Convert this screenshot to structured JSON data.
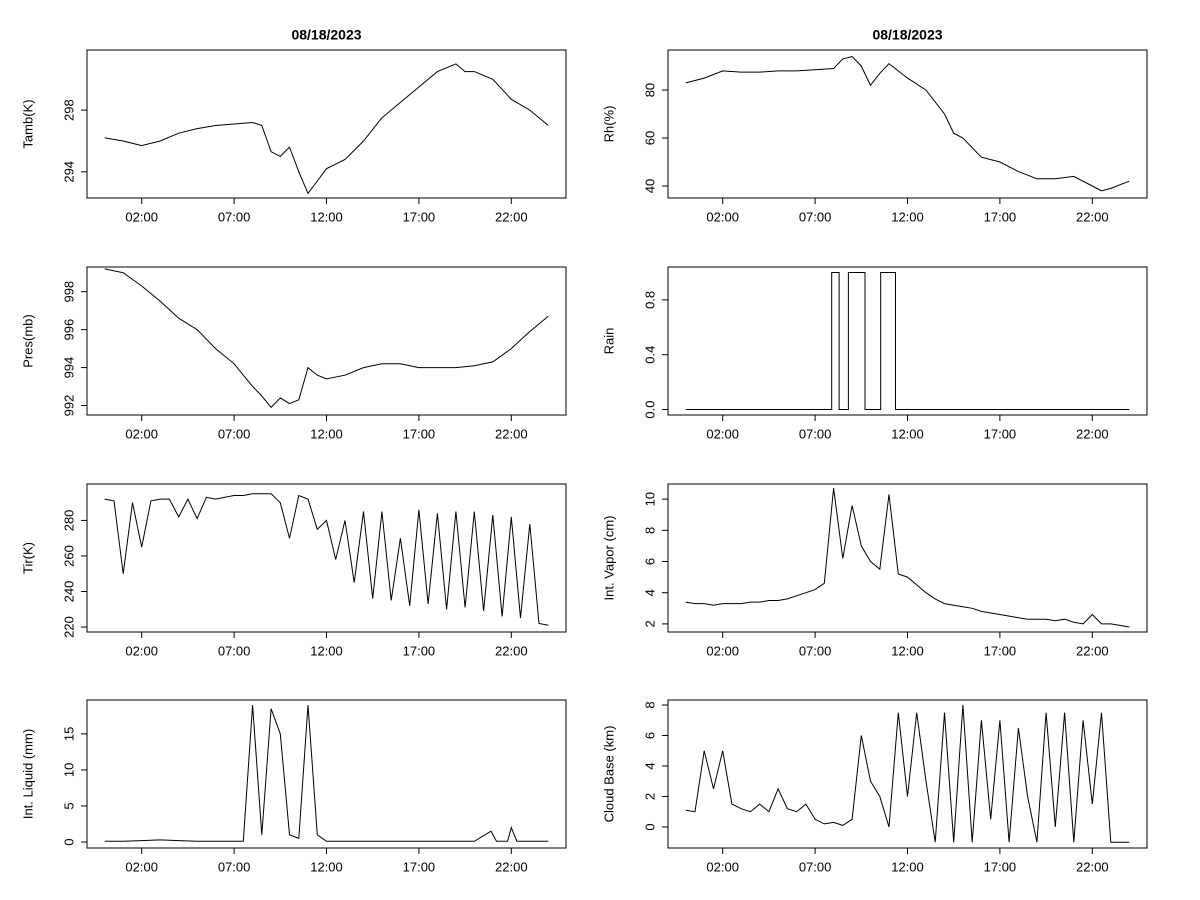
{
  "chart_data": [
    {
      "type": "line",
      "title": "08/18/2023",
      "y_label": "Tamb(K)",
      "color": "#000000",
      "x": [
        0,
        1,
        2,
        3,
        4,
        5,
        6,
        7,
        8,
        8.5,
        9,
        9.5,
        10,
        10.5,
        11,
        11.5,
        12,
        13,
        14,
        15,
        16,
        17,
        18,
        19,
        19.5,
        20,
        21,
        22,
        23,
        24
      ],
      "values": [
        296.2,
        296.0,
        295.7,
        296.0,
        296.5,
        296.8,
        297.0,
        297.1,
        297.2,
        297.0,
        295.3,
        295.0,
        295.6,
        294.0,
        292.6,
        293.4,
        294.2,
        294.8,
        296.0,
        297.5,
        298.5,
        299.5,
        300.5,
        301.0,
        300.5,
        300.5,
        300.0,
        298.7,
        298.0,
        297.0
      ],
      "xlim": [
        -0.96,
        24.96
      ],
      "xticks": [
        {
          "value": 2,
          "label": "02:00"
        },
        {
          "value": 7,
          "label": "07:00"
        },
        {
          "value": 12,
          "label": "12:00"
        },
        {
          "value": 17,
          "label": "17:00"
        },
        {
          "value": 22,
          "label": "22:00"
        }
      ],
      "ylim": [
        292.3,
        301.9
      ],
      "yticks": [
        294,
        298
      ]
    },
    {
      "type": "line",
      "title": "08/18/2023",
      "y_label": "Rh(%)",
      "color": "#000000",
      "x": [
        0,
        1,
        2,
        3,
        4,
        5,
        6,
        7,
        8,
        8.5,
        9,
        9.5,
        10,
        10.5,
        11,
        11.5,
        12,
        13,
        14,
        14.5,
        15,
        16,
        17,
        18,
        19,
        20,
        21,
        22,
        22.5,
        23,
        24
      ],
      "values": [
        83,
        85,
        88,
        87.5,
        87.5,
        88,
        88,
        88.5,
        89,
        93,
        94,
        90,
        82,
        87,
        91,
        88,
        85,
        80,
        70,
        62,
        60,
        52,
        50,
        46,
        43,
        43,
        44,
        40,
        38,
        39,
        42
      ],
      "xlim": [
        -0.96,
        24.96
      ],
      "xticks": [
        {
          "value": 2,
          "label": "02:00"
        },
        {
          "value": 7,
          "label": "07:00"
        },
        {
          "value": 12,
          "label": "12:00"
        },
        {
          "value": 17,
          "label": "17:00"
        },
        {
          "value": 22,
          "label": "22:00"
        }
      ],
      "ylim": [
        35,
        96.7
      ],
      "yticks": [
        40,
        60,
        80
      ]
    },
    {
      "type": "line",
      "y_label": "Pres(mb)",
      "color": "#000000",
      "x": [
        0,
        1,
        2,
        3,
        4,
        5,
        6,
        7,
        8,
        8.5,
        9,
        9.5,
        10,
        10.5,
        11,
        11.5,
        12,
        13,
        14,
        15,
        16,
        17,
        18,
        19,
        20,
        21,
        22,
        23,
        24
      ],
      "values": [
        999.2,
        999.0,
        998.3,
        997.5,
        996.6,
        996.0,
        995.0,
        994.2,
        993.0,
        992.5,
        991.9,
        992.4,
        992.1,
        992.3,
        994.0,
        993.6,
        993.4,
        993.6,
        994.0,
        994.2,
        994.2,
        994.0,
        994.0,
        994.0,
        994.1,
        994.3,
        995.0,
        995.9,
        996.7
      ],
      "xlim": [
        -0.96,
        24.96
      ],
      "xticks": [
        {
          "value": 2,
          "label": "02:00"
        },
        {
          "value": 7,
          "label": "07:00"
        },
        {
          "value": 12,
          "label": "12:00"
        },
        {
          "value": 17,
          "label": "17:00"
        },
        {
          "value": 22,
          "label": "22:00"
        }
      ],
      "ylim": [
        991.5,
        999.3
      ],
      "yticks": [
        992,
        994,
        996,
        998
      ]
    },
    {
      "type": "line",
      "y_label": "Rain",
      "color": "#000000",
      "x": [
        0,
        7.9,
        7.9,
        8.3,
        8.3,
        8.8,
        8.8,
        9.7,
        9.7,
        10.55,
        10.55,
        11.35,
        11.35,
        24
      ],
      "values": [
        0,
        0,
        1,
        1,
        0,
        0,
        1,
        1,
        0,
        0,
        1,
        1,
        0,
        0
      ],
      "xlim": [
        -0.96,
        24.96
      ],
      "xticks": [
        {
          "value": 2,
          "label": "02:00"
        },
        {
          "value": 7,
          "label": "07:00"
        },
        {
          "value": 12,
          "label": "12:00"
        },
        {
          "value": 17,
          "label": "17:00"
        },
        {
          "value": 22,
          "label": "22:00"
        }
      ],
      "ylim": [
        -0.04,
        1.04
      ],
      "yticks": [
        {
          "value": 0,
          "label": "0.0"
        },
        {
          "value": 0.4,
          "label": "0.4"
        },
        {
          "value": 0.8,
          "label": "0.8"
        }
      ]
    },
    {
      "type": "line",
      "y_label": "Tir(K)",
      "color": "#000000",
      "x": [
        0,
        0.5,
        1,
        1.5,
        2,
        2.5,
        3,
        3.5,
        4,
        4.5,
        5,
        5.5,
        6,
        6.5,
        7,
        7.5,
        8,
        8.5,
        9,
        9.5,
        10,
        10.5,
        11,
        11.5,
        12,
        12.5,
        13,
        13.5,
        14,
        14.5,
        15,
        15.5,
        16,
        16.5,
        17,
        17.5,
        18,
        18.5,
        19,
        19.5,
        20,
        20.5,
        21,
        21.5,
        22,
        22.5,
        23,
        23.5,
        24
      ],
      "values": [
        292,
        291,
        250,
        290,
        265,
        291,
        292,
        292,
        282,
        292,
        281,
        293,
        292,
        293,
        294,
        294,
        295,
        295,
        295,
        290,
        270,
        294,
        292,
        275,
        280,
        258,
        280,
        245,
        285,
        236,
        285,
        235,
        270,
        232,
        286,
        233,
        284,
        230,
        285,
        231,
        285,
        229,
        283,
        226,
        282,
        225,
        278,
        222,
        221
      ],
      "xlim": [
        -0.96,
        24.96
      ],
      "xticks": [
        {
          "value": 2,
          "label": "02:00"
        },
        {
          "value": 7,
          "label": "07:00"
        },
        {
          "value": 12,
          "label": "12:00"
        },
        {
          "value": 17,
          "label": "17:00"
        },
        {
          "value": 22,
          "label": "22:00"
        }
      ],
      "ylim": [
        217.2,
        300.5
      ],
      "yticks": [
        220,
        240,
        260,
        280
      ]
    },
    {
      "type": "line",
      "y_label": "Int. Vapor (cm)",
      "color": "#000000",
      "x": [
        0,
        0.5,
        1,
        1.5,
        2,
        2.5,
        3,
        3.5,
        4,
        4.5,
        5,
        5.5,
        6,
        6.5,
        7,
        7.5,
        8,
        8.5,
        9,
        9.5,
        10,
        10.5,
        11,
        11.5,
        12,
        12.5,
        13,
        13.5,
        14,
        14.5,
        15,
        15.5,
        16,
        16.5,
        17,
        17.5,
        18,
        18.5,
        19,
        19.5,
        20,
        20.5,
        21,
        21.5,
        22,
        22.5,
        23,
        23.5,
        24
      ],
      "values": [
        3.4,
        3.3,
        3.3,
        3.2,
        3.3,
        3.3,
        3.3,
        3.4,
        3.4,
        3.5,
        3.5,
        3.6,
        3.8,
        4.0,
        4.2,
        4.6,
        10.7,
        6.2,
        9.6,
        7.0,
        6.0,
        5.5,
        10.3,
        5.2,
        5.0,
        4.5,
        4.0,
        3.6,
        3.3,
        3.2,
        3.1,
        3.0,
        2.8,
        2.7,
        2.6,
        2.5,
        2.4,
        2.3,
        2.3,
        2.3,
        2.2,
        2.3,
        2.1,
        2.0,
        2.6,
        2.0,
        2.0,
        1.9,
        1.8
      ],
      "xlim": [
        -0.96,
        24.96
      ],
      "xticks": [
        {
          "value": 2,
          "label": "02:00"
        },
        {
          "value": 7,
          "label": "07:00"
        },
        {
          "value": 12,
          "label": "12:00"
        },
        {
          "value": 17,
          "label": "17:00"
        },
        {
          "value": 22,
          "label": "22:00"
        }
      ],
      "ylim": [
        1.48,
        10.97
      ],
      "yticks": [
        2,
        4,
        6,
        8,
        10
      ]
    },
    {
      "type": "line",
      "y_label": "Int. Liquid (mm)",
      "color": "#000000",
      "x": [
        0,
        1,
        2,
        3,
        4,
        5,
        6,
        7,
        7.5,
        8,
        8.5,
        9,
        9.5,
        10,
        10.5,
        11,
        11.5,
        12,
        13,
        14,
        15,
        16,
        17,
        18,
        19,
        20,
        20.9,
        21.2,
        21.8,
        22,
        22.3,
        23,
        24
      ],
      "values": [
        0.1,
        0.1,
        0.2,
        0.3,
        0.2,
        0.1,
        0.1,
        0.1,
        0.1,
        19,
        1,
        18.5,
        15,
        1,
        0.5,
        19,
        1,
        0.1,
        0.1,
        0.1,
        0.1,
        0.1,
        0.1,
        0.1,
        0.1,
        0.1,
        1.5,
        0.1,
        0.1,
        2,
        0.1,
        0.1,
        0.1
      ],
      "xlim": [
        -0.96,
        24.96
      ],
      "xticks": [
        {
          "value": 2,
          "label": "02:00"
        },
        {
          "value": 7,
          "label": "07:00"
        },
        {
          "value": 12,
          "label": "12:00"
        },
        {
          "value": 17,
          "label": "17:00"
        },
        {
          "value": 22,
          "label": "22:00"
        }
      ],
      "ylim": [
        -0.83,
        19.7
      ],
      "yticks": [
        0,
        5,
        10,
        15
      ]
    },
    {
      "type": "line",
      "y_label": "Cloud Base (km)",
      "color": "#000000",
      "x": [
        0,
        0.5,
        1,
        1.5,
        2,
        2.5,
        3,
        3.5,
        4,
        4.5,
        5,
        5.5,
        6,
        6.5,
        7,
        7.5,
        8,
        8.5,
        9,
        9.5,
        10,
        10.5,
        11,
        11.5,
        12,
        12.5,
        13,
        13.5,
        14,
        14.5,
        15,
        15.5,
        16,
        16.5,
        17,
        17.5,
        18,
        18.5,
        19,
        19.5,
        20,
        20.5,
        21,
        21.5,
        22,
        22.5,
        23,
        23.5,
        24
      ],
      "values": [
        1.1,
        1.0,
        5,
        2.5,
        5,
        1.5,
        1.2,
        1.0,
        1.5,
        1.0,
        2.5,
        1.2,
        1.0,
        1.5,
        0.5,
        0.2,
        0.3,
        0.1,
        0.5,
        6,
        3,
        2,
        0,
        7.5,
        2,
        7.5,
        3,
        -1,
        7.5,
        -1,
        8,
        -1,
        7,
        0.5,
        7,
        -1,
        6.5,
        2,
        -1,
        7.5,
        0,
        7.5,
        -1,
        7,
        1.5,
        7.5,
        -1,
        -1,
        -1
      ],
      "xlim": [
        -0.96,
        24.96
      ],
      "xticks": [
        {
          "value": 2,
          "label": "02:00"
        },
        {
          "value": 7,
          "label": "07:00"
        },
        {
          "value": 12,
          "label": "12:00"
        },
        {
          "value": 17,
          "label": "17:00"
        },
        {
          "value": 22,
          "label": "22:00"
        }
      ],
      "ylim": [
        -1.38,
        8.33
      ],
      "yticks": [
        0,
        2,
        4,
        6,
        8
      ]
    }
  ]
}
